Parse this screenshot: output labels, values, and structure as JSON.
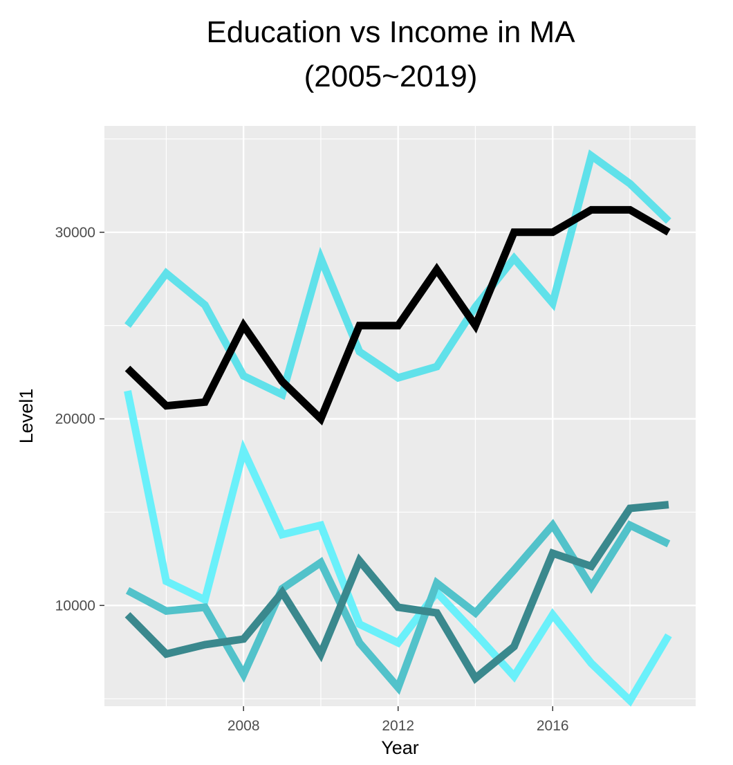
{
  "chart_data": {
    "type": "line",
    "title": "Education vs Income in MA",
    "subtitle": "(2005~2019)",
    "xlabel": "Year",
    "ylabel": "Level1",
    "x": [
      2005,
      2006,
      2007,
      2008,
      2009,
      2010,
      2011,
      2012,
      2013,
      2014,
      2015,
      2016,
      2017,
      2018,
      2019
    ],
    "xlim": [
      2004.4,
      2019.7
    ],
    "ylim": [
      4600,
      35700
    ],
    "xticks": [
      2008,
      2012,
      2016
    ],
    "yticks": [
      10000,
      20000,
      30000
    ],
    "xtick_labels": [
      "2008",
      "2012",
      "2016"
    ],
    "ytick_labels": [
      "10000",
      "20000",
      "30000"
    ],
    "grid": true,
    "legend": "none",
    "background": "#ebebeb",
    "series": [
      {
        "color": "#60e1ea",
        "values": [
          25000,
          27800,
          26100,
          22300,
          21300,
          28600,
          23600,
          22200,
          22800,
          26000,
          28600,
          26200,
          34100,
          32600,
          30600
        ]
      },
      {
        "color": "#6af0fa",
        "values": [
          21500,
          11300,
          10300,
          18300,
          13800,
          14300,
          9000,
          8000,
          10700,
          8500,
          6200,
          9500,
          6900,
          4900,
          8400
        ]
      },
      {
        "color": "#52c2ca",
        "values": [
          10800,
          9700,
          9900,
          6300,
          10900,
          12300,
          8000,
          5600,
          11200,
          9600,
          11900,
          14300,
          11000,
          14300,
          13300
        ]
      },
      {
        "color": "#3a888d",
        "values": [
          9500,
          7400,
          7900,
          8200,
          10700,
          7400,
          12400,
          9900,
          9600,
          6100,
          7800,
          12800,
          12100,
          15200,
          15400
        ]
      },
      {
        "color": "#000000",
        "values": [
          22700,
          20700,
          20900,
          25000,
          22000,
          20000,
          25000,
          25000,
          28000,
          25000,
          30000,
          30000,
          31200,
          31200,
          30000
        ]
      }
    ]
  }
}
